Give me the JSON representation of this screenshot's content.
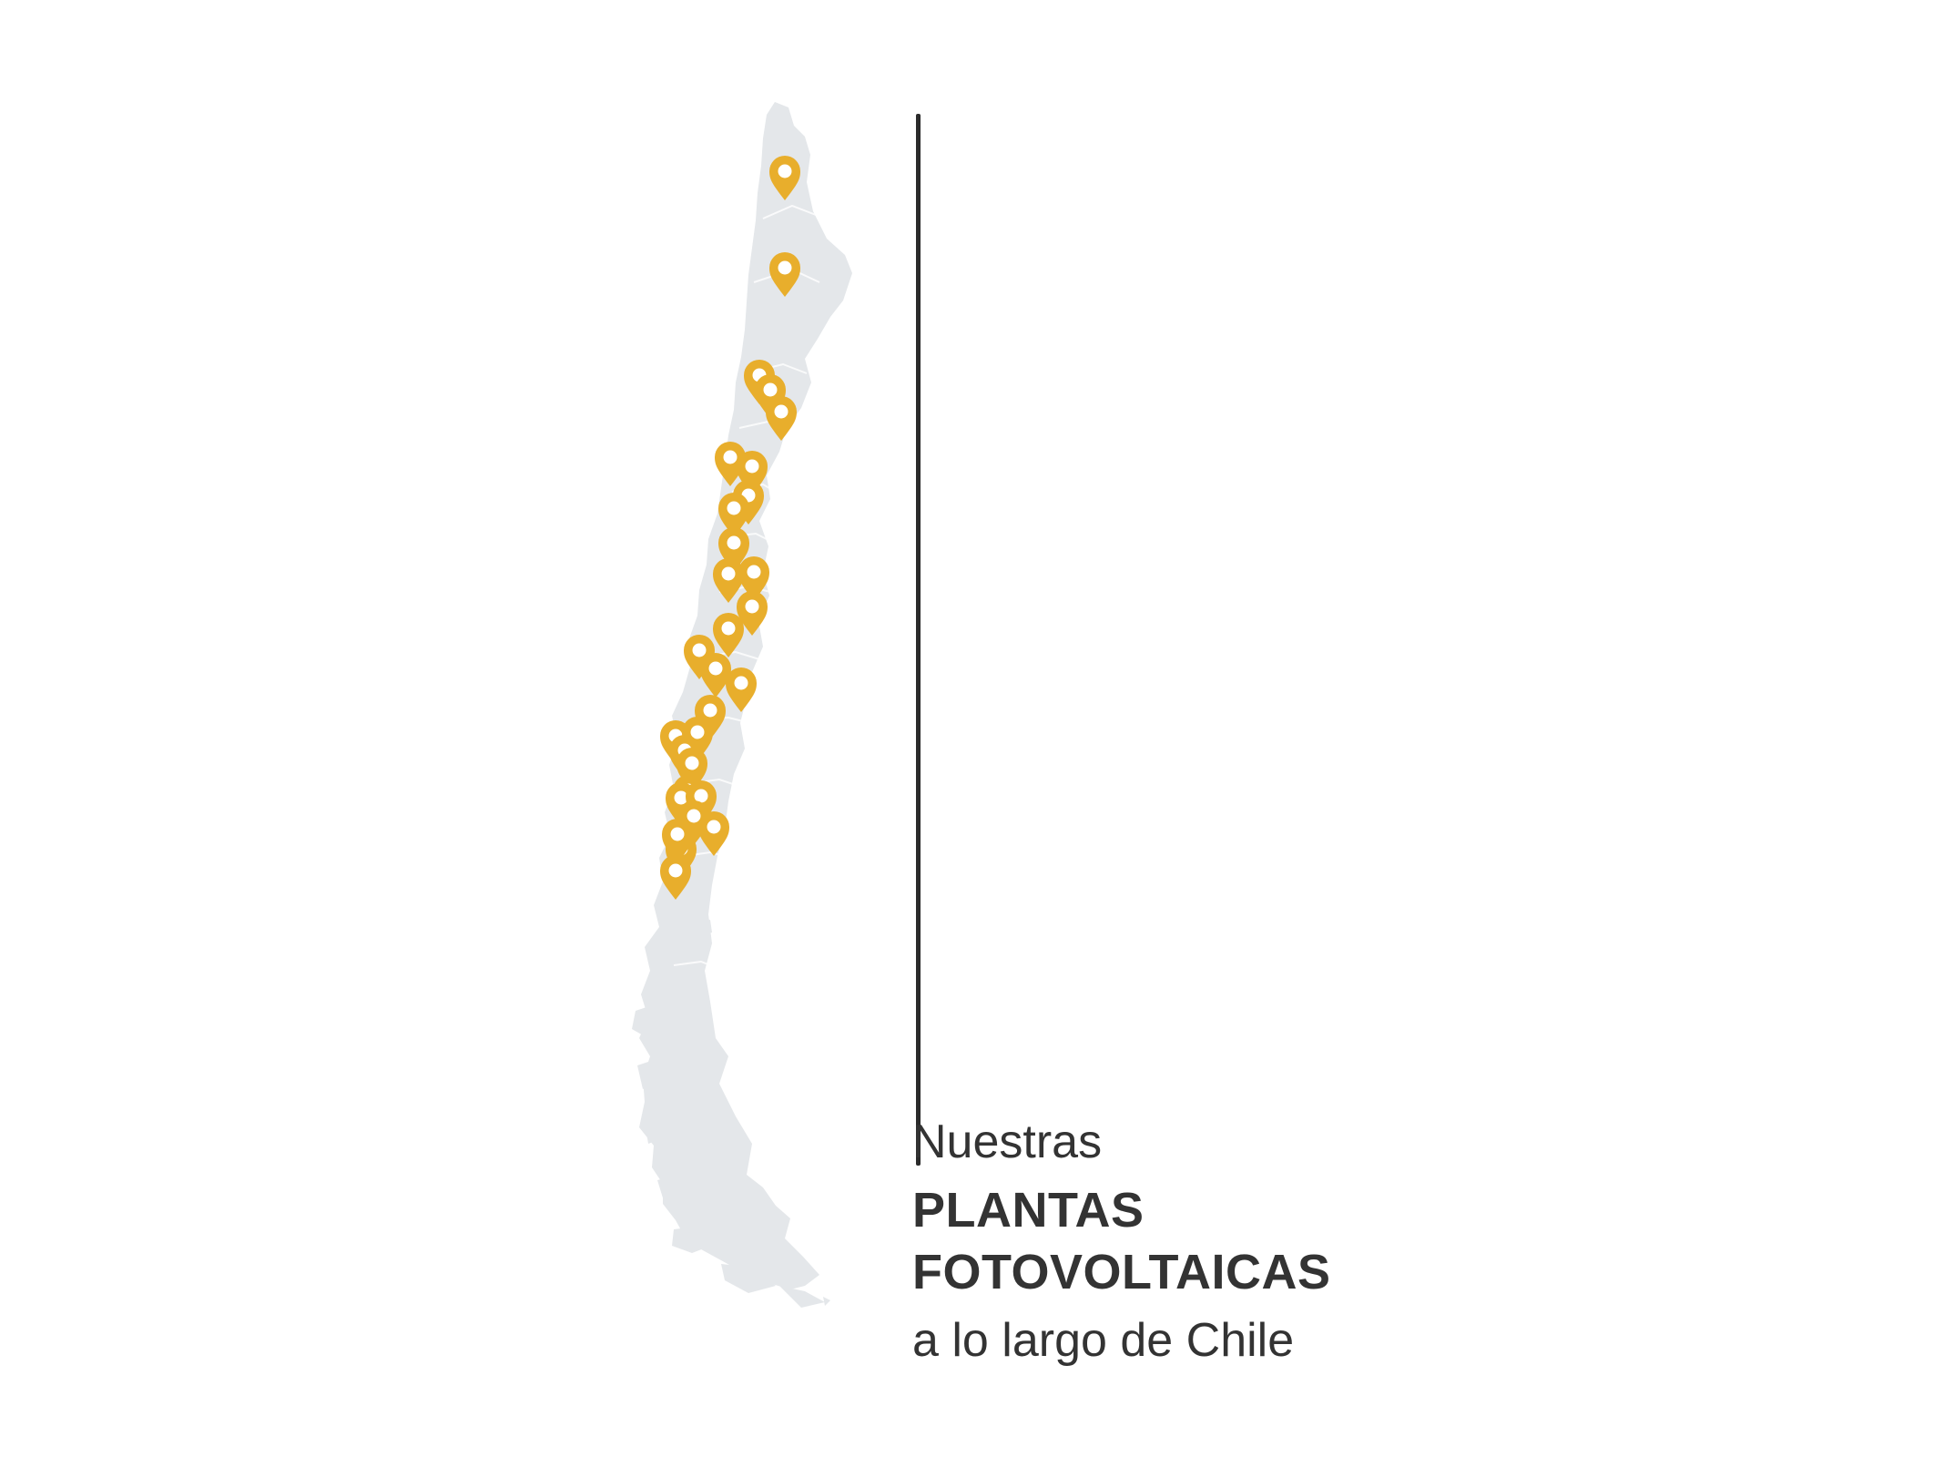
{
  "caption": {
    "line1": "Nuestras",
    "line2": "PLANTAS",
    "line3": "FOTOVOLTAICAS",
    "line4": "a lo largo de Chile"
  },
  "map": {
    "country": "Chile",
    "land_color": "#e4e7ea",
    "marker_color": "#e8ae2c",
    "marker_count": 30
  }
}
